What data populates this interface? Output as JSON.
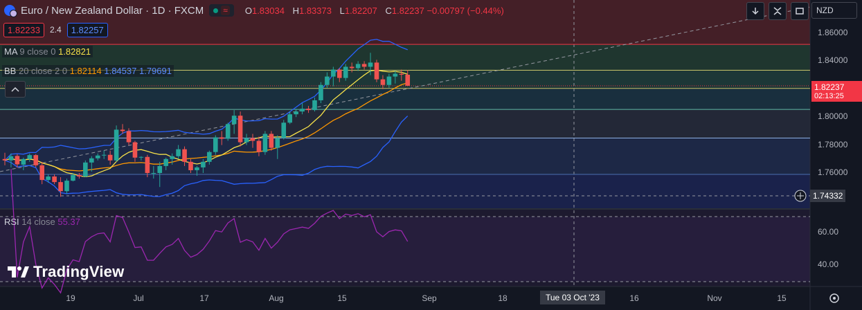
{
  "header": {
    "title": "Euro / New Zealand Dollar · 1D · FXCM",
    "ohlc": [
      {
        "k": "O",
        "v": "1.83034"
      },
      {
        "k": "H",
        "v": "1.83373"
      },
      {
        "k": "L",
        "v": "1.82207"
      },
      {
        "k": "C",
        "v": "1.82237 −0.00797 (−0.44%)"
      }
    ],
    "sell_price": "1.82233",
    "spread": "2.4",
    "buy_price": "1.82257",
    "currency": "NZD"
  },
  "indicators": {
    "ma": {
      "name": "MA",
      "params": "9 close 0",
      "value": "1.82821",
      "color": "#f7e24a"
    },
    "bb": {
      "name": "BB",
      "params": "20 close 2 0",
      "basis": "1.82114",
      "upper": "1.84537",
      "lower": "1.79691",
      "basis_color": "#ff9800",
      "band_color": "#2962ff"
    },
    "rsi": {
      "name": "RSI",
      "params": "14 close",
      "value": "55.37",
      "color": "#9c27b0"
    }
  },
  "price_axis": {
    "ticks": [
      "1.86000",
      "1.84000",
      "1.82000",
      "1.80000",
      "1.78000",
      "1.76000"
    ],
    "last_price": "1.82237",
    "countdown": "02:13:25",
    "crosshair_price": "1.74332"
  },
  "rsi_axis": {
    "ticks": [
      "60.00",
      "40.00"
    ]
  },
  "time_axis": {
    "ticks": [
      "19",
      "Jul",
      "17",
      "Aug",
      "15",
      "Sep",
      "18",
      "16",
      "Nov",
      "15"
    ],
    "crosshair_label": "Tue 03 Oct '23"
  },
  "branding": {
    "text": "TradingView"
  },
  "chart_data": {
    "type": "candlestick",
    "symbol": "EURNZD",
    "interval": "1D",
    "ylim": [
      1.742,
      1.866
    ],
    "candles": [
      {
        "o": 1.77,
        "h": 1.7745,
        "l": 1.7655,
        "c": 1.769
      },
      {
        "o": 1.769,
        "h": 1.774,
        "l": 1.764,
        "c": 1.772
      },
      {
        "o": 1.7722,
        "h": 1.7735,
        "l": 1.7638,
        "c": 1.7662
      },
      {
        "o": 1.766,
        "h": 1.771,
        "l": 1.762,
        "c": 1.77
      },
      {
        "o": 1.77,
        "h": 1.774,
        "l": 1.768,
        "c": 1.7728
      },
      {
        "o": 1.7728,
        "h": 1.7735,
        "l": 1.764,
        "c": 1.7655
      },
      {
        "o": 1.7655,
        "h": 1.768,
        "l": 1.752,
        "c": 1.755
      },
      {
        "o": 1.755,
        "h": 1.759,
        "l": 1.753,
        "c": 1.7575
      },
      {
        "o": 1.7575,
        "h": 1.759,
        "l": 1.752,
        "c": 1.7535
      },
      {
        "o": 1.7535,
        "h": 1.757,
        "l": 1.743,
        "c": 1.747
      },
      {
        "o": 1.747,
        "h": 1.756,
        "l": 1.745,
        "c": 1.7545
      },
      {
        "o": 1.7545,
        "h": 1.76,
        "l": 1.754,
        "c": 1.7585
      },
      {
        "o": 1.7585,
        "h": 1.76,
        "l": 1.756,
        "c": 1.7575
      },
      {
        "o": 1.7575,
        "h": 1.769,
        "l": 1.757,
        "c": 1.7675
      },
      {
        "o": 1.7675,
        "h": 1.772,
        "l": 1.761,
        "c": 1.7705
      },
      {
        "o": 1.7705,
        "h": 1.774,
        "l": 1.769,
        "c": 1.7725
      },
      {
        "o": 1.7725,
        "h": 1.776,
        "l": 1.77,
        "c": 1.773
      },
      {
        "o": 1.773,
        "h": 1.776,
        "l": 1.766,
        "c": 1.769
      },
      {
        "o": 1.769,
        "h": 1.794,
        "l": 1.768,
        "c": 1.791
      },
      {
        "o": 1.791,
        "h": 1.795,
        "l": 1.788,
        "c": 1.79
      },
      {
        "o": 1.79,
        "h": 1.792,
        "l": 1.78,
        "c": 1.782
      },
      {
        "o": 1.782,
        "h": 1.783,
        "l": 1.768,
        "c": 1.771
      },
      {
        "o": 1.771,
        "h": 1.772,
        "l": 1.769,
        "c": 1.7715
      },
      {
        "o": 1.7715,
        "h": 1.773,
        "l": 1.757,
        "c": 1.76
      },
      {
        "o": 1.76,
        "h": 1.765,
        "l": 1.756,
        "c": 1.76
      },
      {
        "o": 1.76,
        "h": 1.768,
        "l": 1.75,
        "c": 1.765
      },
      {
        "o": 1.765,
        "h": 1.771,
        "l": 1.762,
        "c": 1.77
      },
      {
        "o": 1.77,
        "h": 1.774,
        "l": 1.766,
        "c": 1.772
      },
      {
        "o": 1.772,
        "h": 1.78,
        "l": 1.77,
        "c": 1.777
      },
      {
        "o": 1.777,
        "h": 1.779,
        "l": 1.765,
        "c": 1.768
      },
      {
        "o": 1.768,
        "h": 1.77,
        "l": 1.76,
        "c": 1.762
      },
      {
        "o": 1.762,
        "h": 1.765,
        "l": 1.758,
        "c": 1.764
      },
      {
        "o": 1.764,
        "h": 1.77,
        "l": 1.76,
        "c": 1.768
      },
      {
        "o": 1.768,
        "h": 1.776,
        "l": 1.766,
        "c": 1.775
      },
      {
        "o": 1.775,
        "h": 1.787,
        "l": 1.773,
        "c": 1.7855
      },
      {
        "o": 1.7855,
        "h": 1.79,
        "l": 1.78,
        "c": 1.7845
      },
      {
        "o": 1.7845,
        "h": 1.796,
        "l": 1.783,
        "c": 1.795
      },
      {
        "o": 1.795,
        "h": 1.805,
        "l": 1.788,
        "c": 1.801
      },
      {
        "o": 1.801,
        "h": 1.804,
        "l": 1.779,
        "c": 1.782
      },
      {
        "o": 1.782,
        "h": 1.788,
        "l": 1.78,
        "c": 1.785
      },
      {
        "o": 1.785,
        "h": 1.788,
        "l": 1.778,
        "c": 1.783
      },
      {
        "o": 1.783,
        "h": 1.786,
        "l": 1.772,
        "c": 1.775
      },
      {
        "o": 1.775,
        "h": 1.79,
        "l": 1.773,
        "c": 1.788
      },
      {
        "o": 1.788,
        "h": 1.79,
        "l": 1.776,
        "c": 1.778
      },
      {
        "o": 1.778,
        "h": 1.787,
        "l": 1.77,
        "c": 1.785
      },
      {
        "o": 1.785,
        "h": 1.798,
        "l": 1.784,
        "c": 1.796
      },
      {
        "o": 1.796,
        "h": 1.804,
        "l": 1.795,
        "c": 1.802
      },
      {
        "o": 1.802,
        "h": 1.806,
        "l": 1.8,
        "c": 1.804
      },
      {
        "o": 1.804,
        "h": 1.81,
        "l": 1.802,
        "c": 1.806
      },
      {
        "o": 1.806,
        "h": 1.808,
        "l": 1.803,
        "c": 1.805
      },
      {
        "o": 1.805,
        "h": 1.814,
        "l": 1.804,
        "c": 1.812
      },
      {
        "o": 1.812,
        "h": 1.825,
        "l": 1.81,
        "c": 1.823
      },
      {
        "o": 1.823,
        "h": 1.832,
        "l": 1.821,
        "c": 1.829
      },
      {
        "o": 1.829,
        "h": 1.836,
        "l": 1.822,
        "c": 1.834
      },
      {
        "o": 1.834,
        "h": 1.835,
        "l": 1.825,
        "c": 1.828
      },
      {
        "o": 1.828,
        "h": 1.838,
        "l": 1.826,
        "c": 1.836
      },
      {
        "o": 1.836,
        "h": 1.839,
        "l": 1.832,
        "c": 1.835
      },
      {
        "o": 1.835,
        "h": 1.84,
        "l": 1.833,
        "c": 1.838
      },
      {
        "o": 1.838,
        "h": 1.84,
        "l": 1.834,
        "c": 1.836
      },
      {
        "o": 1.836,
        "h": 1.846,
        "l": 1.83,
        "c": 1.839
      },
      {
        "o": 1.839,
        "h": 1.841,
        "l": 1.825,
        "c": 1.827
      },
      {
        "o": 1.827,
        "h": 1.83,
        "l": 1.82,
        "c": 1.823
      },
      {
        "o": 1.823,
        "h": 1.831,
        "l": 1.821,
        "c": 1.829
      },
      {
        "o": 1.829,
        "h": 1.833,
        "l": 1.824,
        "c": 1.831
      },
      {
        "o": 1.831,
        "h": 1.834,
        "l": 1.826,
        "c": 1.8303
      },
      {
        "o": 1.8303,
        "h": 1.8337,
        "l": 1.8221,
        "c": 1.8224
      }
    ],
    "horizontal_levels": [
      1.852,
      1.8335,
      1.8205,
      1.8055,
      1.785,
      1.759
    ],
    "rsi_levels": [
      70,
      30
    ]
  }
}
